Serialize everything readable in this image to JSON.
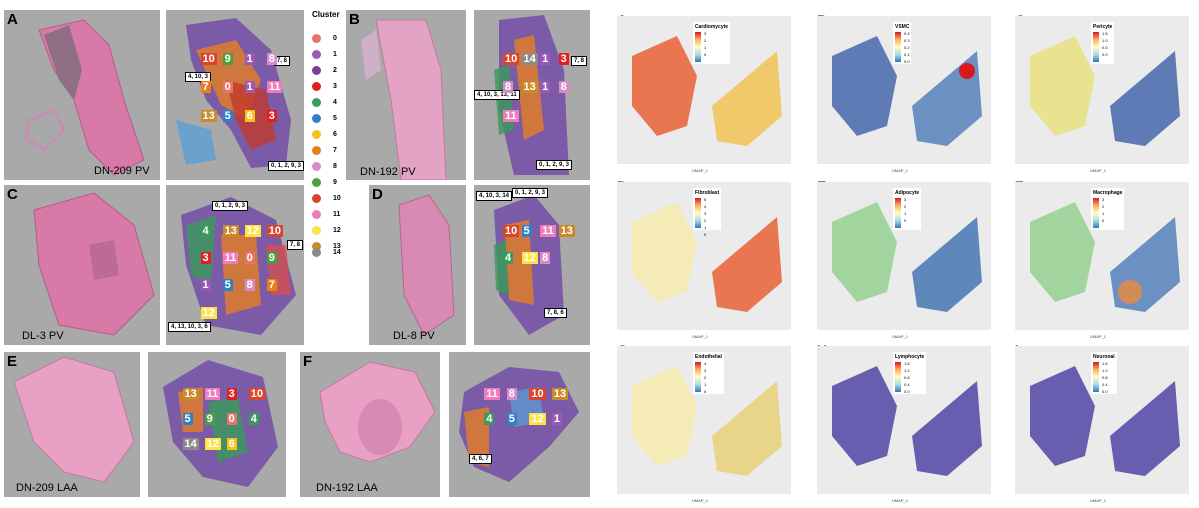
{
  "left_figure": {
    "panels": [
      {
        "letter": "A",
        "sample": "DN-209 PV",
        "boxes": [
          "4, 10, 3",
          "7, 8",
          "0, 1, 2, 9, 3"
        ],
        "numbers": [
          "10",
          "9",
          "1",
          "8",
          "7",
          "0",
          "1",
          "11",
          "13",
          "5",
          "6",
          "3"
        ]
      },
      {
        "letter": "B",
        "sample": "DN-192 PV",
        "boxes": [
          "4, 10, 3, 13, 11",
          "7, 8",
          "0, 1, 2, 9, 3"
        ],
        "numbers": [
          "10",
          "14",
          "1",
          "3",
          "8",
          "13",
          "1",
          "8",
          "11"
        ]
      },
      {
        "letter": "C",
        "sample": "DL-3 PV",
        "boxes": [
          "0, 1, 2, 9, 3",
          "7, 8",
          "4, 13, 10, 3, 6"
        ],
        "numbers": [
          "4",
          "13",
          "12",
          "10",
          "3",
          "11",
          "0",
          "9",
          "1",
          "5",
          "8",
          "7",
          "12"
        ]
      },
      {
        "letter": "D",
        "sample": "DL-8 PV",
        "boxes": [
          "4, 10, 3, 14",
          "0, 1, 2, 9, 3",
          "7, 8, 6"
        ],
        "numbers": [
          "10",
          "5",
          "11",
          "13",
          "4",
          "12",
          "8"
        ]
      },
      {
        "letter": "E",
        "sample": "DN-209 LAA",
        "numbers": [
          "13",
          "11",
          "3",
          "10",
          "5",
          "9",
          "0",
          "4",
          "14",
          "12",
          "6"
        ]
      },
      {
        "letter": "F",
        "sample": "DN-192 LAA",
        "boxes": [
          "4, 6, 7"
        ],
        "numbers": [
          "11",
          "8",
          "10",
          "13",
          "4",
          "5",
          "12",
          "1"
        ]
      }
    ],
    "legend": {
      "title": "Cluster",
      "items": [
        {
          "label": "0",
          "color": "#e8736b"
        },
        {
          "label": "1",
          "color": "#9b59b6"
        },
        {
          "label": "2",
          "color": "#7d3c98"
        },
        {
          "label": "3",
          "color": "#e02020"
        },
        {
          "label": "4",
          "color": "#3a9a5a"
        },
        {
          "label": "5",
          "color": "#2f80c8"
        },
        {
          "label": "6",
          "color": "#f6c21a"
        },
        {
          "label": "7",
          "color": "#e8801a"
        },
        {
          "label": "8",
          "color": "#d98ac8"
        },
        {
          "label": "9",
          "color": "#4aa040"
        },
        {
          "label": "10",
          "color": "#d8452a"
        },
        {
          "label": "11",
          "color": "#ef7bb8"
        },
        {
          "label": "12",
          "color": "#ffe24a"
        },
        {
          "label": "13",
          "color": "#c98a2a"
        },
        {
          "label": "14",
          "color": "#8a8a8a"
        }
      ]
    }
  },
  "right_figure": {
    "panels": [
      {
        "letter": "A",
        "cell_type": "Cardiomycyte",
        "ticks": [
          "3",
          "2",
          "1",
          "0"
        ]
      },
      {
        "letter": "B",
        "cell_type": "VSMC",
        "ticks": [
          "0.4",
          "0.3",
          "0.2",
          "0.1",
          "0.0"
        ]
      },
      {
        "letter": "C",
        "cell_type": "Pericyte",
        "ticks": [
          "1.5",
          "1.0",
          "0.5",
          "0.0"
        ]
      },
      {
        "letter": "D",
        "cell_type": "Fibroblast",
        "ticks": [
          "5",
          "4",
          "3",
          "2",
          "1",
          "0"
        ]
      },
      {
        "letter": "E",
        "cell_type": "Adipocyte",
        "ticks": [
          "3",
          "2",
          "1",
          "0"
        ]
      },
      {
        "letter": "F",
        "cell_type": "Macrophage",
        "ticks": [
          "3",
          "2",
          "1",
          "0"
        ]
      },
      {
        "letter": "G",
        "cell_type": "Endothelial",
        "ticks": [
          "4",
          "3",
          "2",
          "1",
          "0"
        ]
      },
      {
        "letter": "H",
        "cell_type": "Lymphocyte",
        "ticks": [
          "1.6",
          "1.2",
          "0.8",
          "0.4",
          "0.0"
        ]
      },
      {
        "letter": "I",
        "cell_type": "Neuronal",
        "ticks": [
          "1.6",
          "1.2",
          "0.8",
          "0.4",
          "0.0"
        ]
      }
    ],
    "x_axis_label": "UMAP_1",
    "y_axis_label": "UMAP_2"
  }
}
